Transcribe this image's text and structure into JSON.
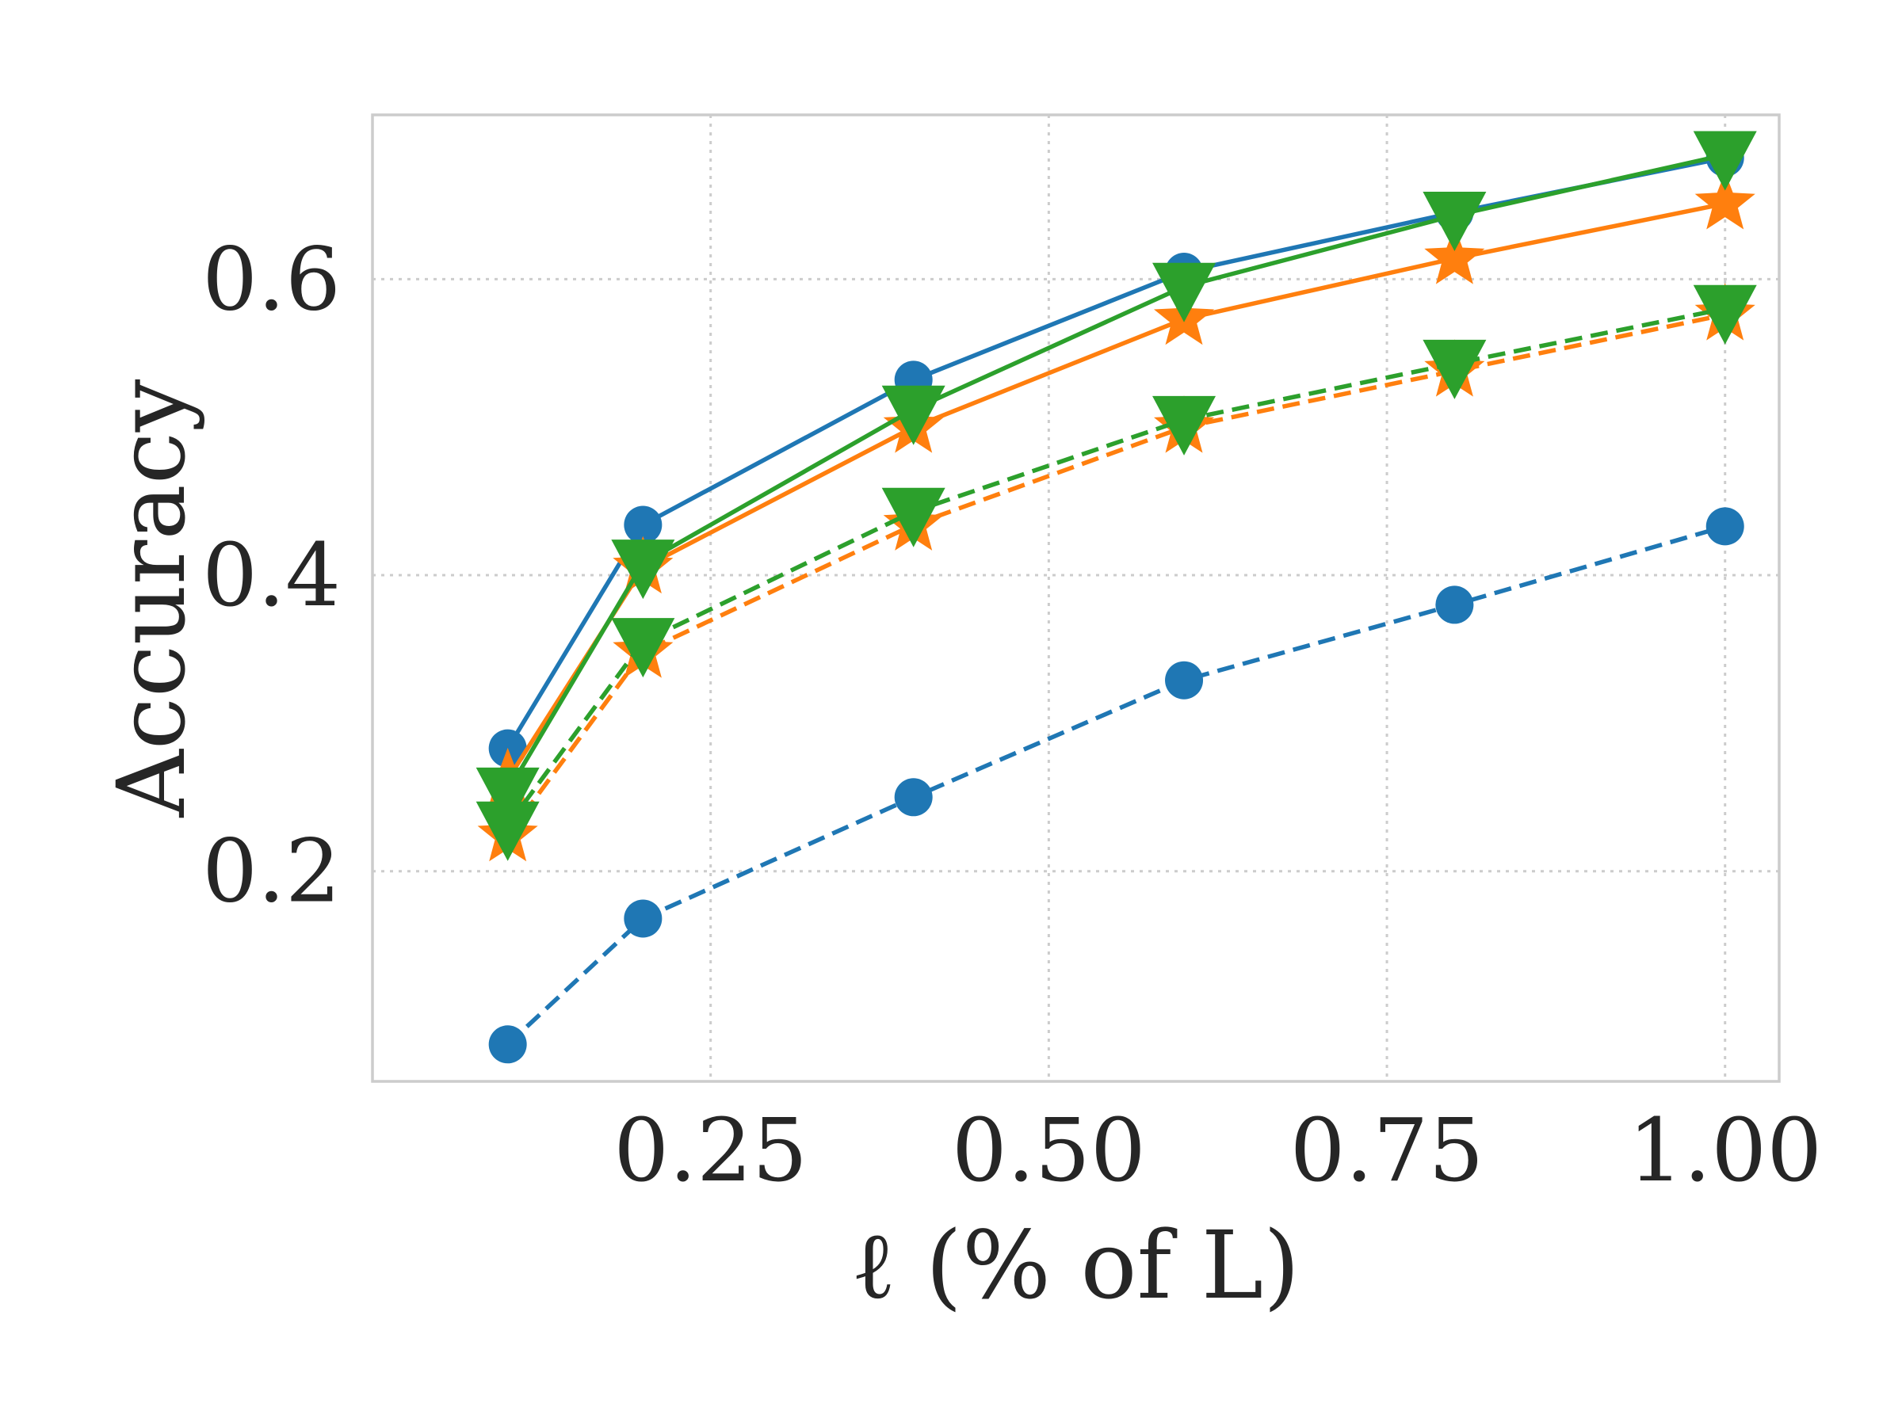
{
  "chart_data": {
    "type": "line",
    "title": "",
    "xlabel": "ℓ (% of L)",
    "ylabel": "Accuracy",
    "xlim": [
      0.0,
      1.04
    ],
    "ylim": [
      0.058,
      0.711
    ],
    "xticks": [
      0.25,
      0.5,
      0.75,
      1.0
    ],
    "xtick_labels": [
      "0.25",
      "0.50",
      "0.75",
      "1.00"
    ],
    "yticks": [
      0.2,
      0.4,
      0.6
    ],
    "ytick_labels": [
      "0.2",
      "0.4",
      "0.6"
    ],
    "grid": true,
    "legend": "none",
    "x": [
      0.1,
      0.2,
      0.4,
      0.6,
      0.8,
      1.0
    ],
    "series": [
      {
        "name": "blue-solid",
        "color": "#1f77b4",
        "linestyle": "solid",
        "marker": "circle",
        "values": [
          0.283,
          0.434,
          0.532,
          0.605,
          0.645,
          0.682
        ]
      },
      {
        "name": "blue-dashed",
        "color": "#1f77b4",
        "linestyle": "dashed",
        "marker": "circle",
        "values": [
          0.083,
          0.168,
          0.25,
          0.329,
          0.38,
          0.433
        ]
      },
      {
        "name": "orange-solid",
        "color": "#ff7f0e",
        "linestyle": "solid",
        "marker": "star",
        "values": [
          0.262,
          0.405,
          0.5,
          0.573,
          0.614,
          0.651
        ]
      },
      {
        "name": "orange-dashed",
        "color": "#ff7f0e",
        "linestyle": "dashed",
        "marker": "star",
        "values": [
          0.224,
          0.348,
          0.434,
          0.5,
          0.538,
          0.576
        ]
      },
      {
        "name": "green-solid",
        "color": "#2ca02c",
        "linestyle": "solid",
        "marker": "triangle-down",
        "values": [
          0.254,
          0.408,
          0.512,
          0.595,
          0.643,
          0.684
        ]
      },
      {
        "name": "green-dashed",
        "color": "#2ca02c",
        "linestyle": "dashed",
        "marker": "triangle-down",
        "values": [
          0.231,
          0.355,
          0.443,
          0.505,
          0.543,
          0.58
        ]
      }
    ]
  }
}
